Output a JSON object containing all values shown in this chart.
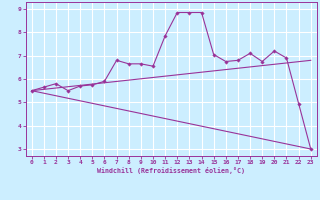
{
  "xlabel": "Windchill (Refroidissement éolien,°C)",
  "xlim": [
    -0.5,
    23.5
  ],
  "ylim": [
    2.7,
    9.3
  ],
  "yticks": [
    3,
    4,
    5,
    6,
    7,
    8,
    9
  ],
  "xticks": [
    0,
    1,
    2,
    3,
    4,
    5,
    6,
    7,
    8,
    9,
    10,
    11,
    12,
    13,
    14,
    15,
    16,
    17,
    18,
    19,
    20,
    21,
    22,
    23
  ],
  "bg_color": "#cceeff",
  "line_color": "#993399",
  "grid_color": "#ffffff",
  "line1_x": [
    0,
    1,
    2,
    3,
    4,
    5,
    6,
    7,
    8,
    9,
    10,
    11,
    12,
    13,
    14,
    15,
    16,
    17,
    18,
    19,
    20,
    21,
    22,
    23
  ],
  "line1_y": [
    5.5,
    5.65,
    5.8,
    5.5,
    5.7,
    5.75,
    5.9,
    6.8,
    6.65,
    6.65,
    6.55,
    7.85,
    8.85,
    8.85,
    8.85,
    7.05,
    6.75,
    6.8,
    7.1,
    6.75,
    7.2,
    6.9,
    4.95,
    3.0
  ],
  "line2_x": [
    0,
    23
  ],
  "line2_y": [
    5.5,
    6.8
  ],
  "line3_x": [
    0,
    23
  ],
  "line3_y": [
    5.5,
    3.0
  ]
}
